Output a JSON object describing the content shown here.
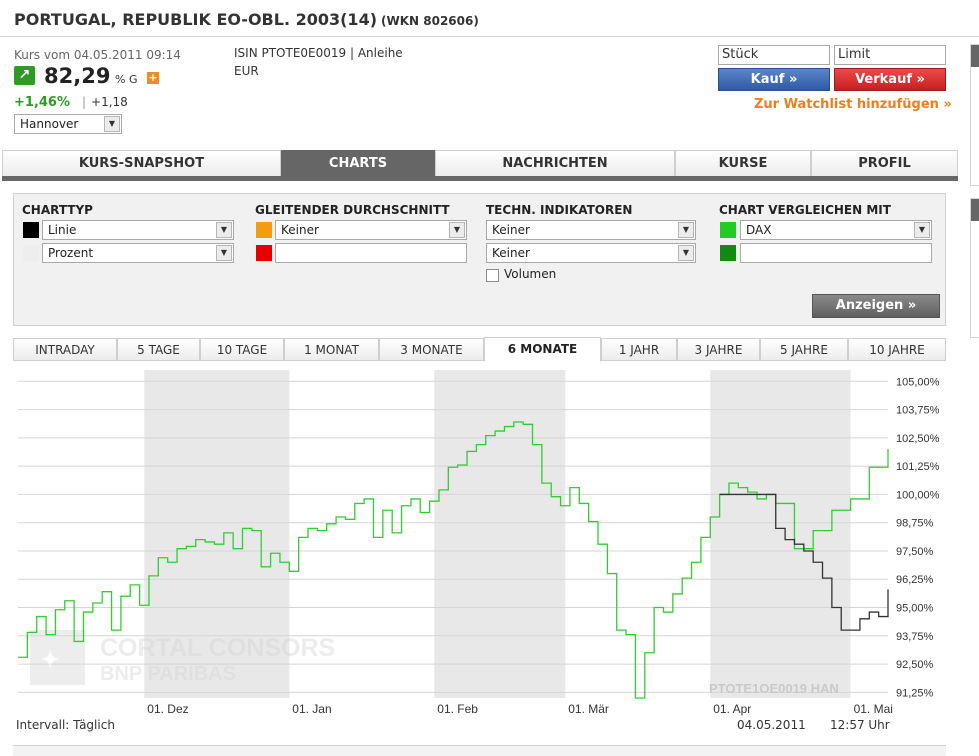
{
  "header": {
    "title": "PORTUGAL, REPUBLIK EO-OBL. 2003(14)",
    "wkn": "(WKN 802606)"
  },
  "quote": {
    "kurs_label": "Kurs vom 04.05.2011 09:14",
    "price": "82,29",
    "price_unit": "% G",
    "change_pct": "+1,46%",
    "change_sep": "|",
    "change_abs": "+1,18",
    "exchange": "Hannover",
    "trend_icon": "arrow-up-right-icon",
    "trend_color": "#2f9a25"
  },
  "instrument": {
    "isin_line": "ISIN PTOTE0E0019  |  Anleihe",
    "currency": "EUR"
  },
  "order": {
    "stueck_placeholder": "Stück",
    "limit_placeholder": "Limit",
    "buy_label": "Kauf »",
    "sell_label": "Verkauf »",
    "watchlist_label": "Zur Watchlist hinzufügen »",
    "watchlist_color": "#f07d1c"
  },
  "main_tabs": [
    {
      "label": "KURS-SNAPSHOT",
      "active": false
    },
    {
      "label": "CHARTS",
      "active": true
    },
    {
      "label": "NACHRICHTEN",
      "active": false
    },
    {
      "label": "KURSE",
      "active": false
    },
    {
      "label": "PROFIL",
      "active": false
    }
  ],
  "settings": {
    "charttyp": {
      "heading": "CHARTTYP",
      "first": "Linie",
      "second": "Prozent",
      "color1": "#000000",
      "color2": "#eeeeee"
    },
    "gleitender": {
      "heading": "GLEITENDER DURCHSCHNITT",
      "first": "Keiner",
      "second": "",
      "color1": "#f39c12",
      "color2": "#e60000"
    },
    "techn": {
      "heading": "TECHN. INDIKATOREN",
      "first": "Keiner",
      "second": "Keiner",
      "volumen_label": "Volumen",
      "volumen_checked": false
    },
    "vergleich": {
      "heading": "CHART VERGLEICHEN MIT",
      "first": "DAX",
      "second": "",
      "color1": "#22cc22",
      "color2": "#128a12"
    },
    "submit_label": "Anzeigen »"
  },
  "period_tabs": [
    {
      "label": "INTRADAY",
      "active": false
    },
    {
      "label": "5 TAGE",
      "active": false
    },
    {
      "label": "10 TAGE",
      "active": false
    },
    {
      "label": "1 MONAT",
      "active": false
    },
    {
      "label": "3 MONATE",
      "active": false
    },
    {
      "label": "6 MONATE",
      "active": true
    },
    {
      "label": "1 JAHR",
      "active": false
    },
    {
      "label": "3 JAHRE",
      "active": false
    },
    {
      "label": "5 JAHRE",
      "active": false
    },
    {
      "label": "10 JAHRE",
      "active": false
    }
  ],
  "chart_footer": {
    "interval": "Intervall: Täglich",
    "date": "04.05.2011",
    "time": "12:57 Uhr"
  },
  "chart_data": {
    "type": "line",
    "xlabel": "",
    "ylabel": "",
    "ylim": [
      91.0,
      105.5
    ],
    "yticks": [
      "105,00%",
      "103,75%",
      "102,50%",
      "101,25%",
      "100,00%",
      "98,75%",
      "97,50%",
      "96,25%",
      "95,00%",
      "93,75%",
      "92,50%",
      "91,25%"
    ],
    "ytick_values": [
      105.0,
      103.75,
      102.5,
      101.25,
      100.0,
      98.75,
      97.5,
      96.25,
      95.0,
      93.75,
      92.5,
      91.25
    ],
    "xticks": [
      "01. Dez",
      "01. Jan",
      "01. Feb",
      "01. Mär",
      "01. Apr",
      "01. Mai"
    ],
    "xtick_days": [
      27,
      58,
      89,
      117,
      148,
      178
    ],
    "xlim": [
      0,
      186
    ],
    "shaded_month_bands": [
      [
        27,
        58
      ],
      [
        89,
        117
      ],
      [
        148,
        178
      ]
    ],
    "grid": true,
    "watermark": "PTOTE1OE0019  HAN",
    "logo_text": [
      "CORTAL CONSORS",
      "BNP PARIBAS"
    ],
    "series": [
      {
        "name": "DAX",
        "color": "#33cc33",
        "x": [
          0,
          2,
          4,
          6,
          8,
          10,
          12,
          14,
          16,
          18,
          20,
          22,
          24,
          26,
          28,
          30,
          32,
          34,
          36,
          38,
          40,
          42,
          44,
          46,
          48,
          50,
          52,
          54,
          56,
          58,
          60,
          62,
          64,
          66,
          68,
          70,
          72,
          74,
          76,
          78,
          80,
          82,
          84,
          86,
          88,
          90,
          92,
          94,
          96,
          98,
          100,
          102,
          104,
          106,
          108,
          110,
          112,
          114,
          116,
          118,
          120,
          122,
          124,
          126,
          128,
          130,
          132,
          134,
          136,
          138,
          140,
          142,
          144,
          146,
          148,
          150,
          152,
          154,
          156,
          158,
          160,
          162,
          166,
          170,
          174,
          178,
          182,
          186
        ],
        "y": [
          92.8,
          93.9,
          94.6,
          93.8,
          94.9,
          95.3,
          93.5,
          94.8,
          95.2,
          95.7,
          94.0,
          95.5,
          96.0,
          95.1,
          96.4,
          97.2,
          97.0,
          97.6,
          97.7,
          98.0,
          97.9,
          97.8,
          98.3,
          97.6,
          98.5,
          98.4,
          96.8,
          97.4,
          97.0,
          96.6,
          98.1,
          98.5,
          98.4,
          98.7,
          99.0,
          98.9,
          99.6,
          99.8,
          98.1,
          99.3,
          98.3,
          99.5,
          99.8,
          99.2,
          99.7,
          100.2,
          101.2,
          101.3,
          101.9,
          102.2,
          102.6,
          102.8,
          103.0,
          103.2,
          103.1,
          102.2,
          100.5,
          99.9,
          99.5,
          100.3,
          99.6,
          98.8,
          97.8,
          96.5,
          94.0,
          93.8,
          91.0,
          93.0,
          95.0,
          94.8,
          95.6,
          96.3,
          97.0,
          98.1,
          99.0,
          100.0,
          100.5,
          100.3,
          100.1,
          99.8,
          100.0,
          99.6,
          97.6,
          98.4,
          99.3,
          99.8,
          101.2,
          102.0
        ]
      },
      {
        "name": "PTOTE1OE0019",
        "color": "#333333",
        "x": [
          150,
          152,
          154,
          156,
          158,
          160,
          162,
          164,
          166,
          168,
          170,
          172,
          174,
          176,
          178,
          180,
          182,
          184,
          186
        ],
        "y": [
          100.0,
          100.0,
          100.0,
          100.0,
          100.0,
          100.0,
          98.5,
          98.0,
          97.8,
          97.5,
          97.0,
          96.3,
          95.0,
          94.0,
          94.0,
          94.5,
          94.8,
          94.6,
          95.8
        ]
      }
    ]
  }
}
